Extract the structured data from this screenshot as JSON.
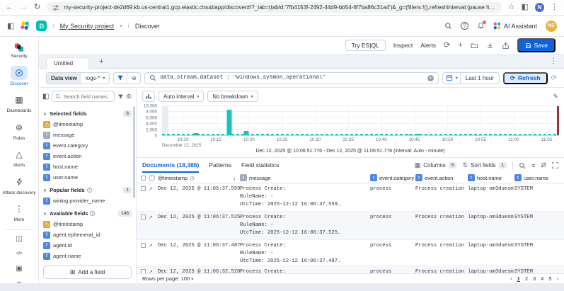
{
  "theme": {
    "accent": "#0b64dd",
    "teal": "#00bfb3"
  },
  "browser": {
    "url": "my-security-project-de2d69.kb.us-central1.gcp.elastic.cloud/app/discover#/?_tab=(tabId:'7fb4153f-2492-44d9-bb54-6f7ba86c31a4')&_g=(filters:!(),refreshInterval:(pause:!t,value:60000),time:(fr…",
    "profile_initial": "N"
  },
  "header": {
    "space_initial": "D",
    "breadcrumb": {
      "project": "My Security project",
      "page": "Discover"
    },
    "ai_assistant_label": "AI Assistant",
    "user_initials": "NS"
  },
  "nav": {
    "logo_label": "Security",
    "items": [
      {
        "id": "discover",
        "label": "Discover",
        "active": true
      },
      {
        "id": "dashboards",
        "label": "Dashboards",
        "active": false
      },
      {
        "id": "rules",
        "label": "Rules",
        "active": false
      },
      {
        "id": "alerts",
        "label": "Alerts",
        "active": false
      },
      {
        "id": "attack-discovery",
        "label": "Attack discovery",
        "active": false
      },
      {
        "id": "more",
        "label": "More",
        "active": false
      }
    ]
  },
  "toolbar": {
    "try_esql": "Try ES|QL",
    "inspect": "Inspect",
    "alerts": "Alerts",
    "save": "Save"
  },
  "tab_bar": {
    "active_tab": "Untitled"
  },
  "query_bar": {
    "data_view_label": "Data view",
    "data_view_value": "logs-*",
    "query": "data_stream.dataset : \"windows.sysmon_operational\"",
    "time_range": "Last 1 hour",
    "refresh_label": "Refresh"
  },
  "fields_panel": {
    "search_placeholder": "Search field names",
    "filter_count": "0",
    "groups": [
      {
        "label": "Selected fields",
        "count": "6",
        "info": false,
        "items": [
          {
            "name": "@timestamp",
            "type": "date"
          },
          {
            "name": "message",
            "type": "text"
          },
          {
            "name": "event.category",
            "type": "keyword"
          },
          {
            "name": "event.action",
            "type": "keyword"
          },
          {
            "name": "host.name",
            "type": "keyword"
          },
          {
            "name": "user.name",
            "type": "keyword"
          }
        ]
      },
      {
        "label": "Popular fields",
        "count": "1",
        "info": true,
        "items": [
          {
            "name": "winlog.provider_name",
            "type": "keyword"
          }
        ]
      },
      {
        "label": "Available fields",
        "count": "146",
        "info": true,
        "items": [
          {
            "name": "@timestamp",
            "type": "date"
          },
          {
            "name": "agent.ephemeral_id",
            "type": "keyword"
          },
          {
            "name": "agent.id",
            "type": "keyword"
          },
          {
            "name": "agent.name",
            "type": "keyword"
          },
          {
            "name": "agent.type",
            "type": "keyword"
          }
        ]
      }
    ],
    "add_field_label": "Add a field"
  },
  "histogram_toolbar": {
    "interval": "Auto interval",
    "breakdown": "No breakdown"
  },
  "chart_data": {
    "type": "bar",
    "title": "Document count over time",
    "time_range_label": "Dec 12, 2025 @ 10:06:51.776 - Dec 12, 2025 @ 11:06:51.776 (interval: Auto - minute)",
    "ylim": [
      0,
      10000
    ],
    "yticks": [
      0,
      2000,
      4000,
      6000,
      8000,
      10000
    ],
    "ytick_labels": [
      "0",
      "2,000",
      "4,000",
      "6,000",
      "8,000",
      "10,000"
    ],
    "x_axis_secondary_label": "December 12, 2025",
    "xticks": [
      {
        "label": "10:10",
        "pos": 5.23
      },
      {
        "label": "10:15",
        "pos": 13.56
      },
      {
        "label": "10:20",
        "pos": 21.9
      },
      {
        "label": "10:25",
        "pos": 30.23
      },
      {
        "label": "10:30",
        "pos": 38.56
      },
      {
        "label": "10:35",
        "pos": 46.9
      },
      {
        "label": "10:40",
        "pos": 55.23
      },
      {
        "label": "10:45",
        "pos": 63.56
      },
      {
        "label": "10:50",
        "pos": 71.9
      },
      {
        "label": "10:55",
        "pos": 80.23
      },
      {
        "label": "11:00",
        "pos": 88.56
      },
      {
        "label": "11:05",
        "pos": 96.9
      }
    ],
    "bars": [
      {
        "pos": 8.5,
        "value": 800
      },
      {
        "pos": 17.0,
        "value": 8700
      },
      {
        "pos": 21.3,
        "value": 1400
      },
      {
        "pos": 62.3,
        "value": 300
      },
      {
        "pos": 64.4,
        "value": 380
      }
    ],
    "baseline_value": 60,
    "bar_color": "#16c5c0",
    "partial_bucket_band_color": "#e9edf3",
    "current_bucket_marker_color": "#97323c",
    "grid": true,
    "legend": "none"
  },
  "documents": {
    "tabs": [
      {
        "label": "Documents (18,386)",
        "active": true
      },
      {
        "label": "Patterns",
        "active": false
      },
      {
        "label": "Field statistics",
        "active": false
      }
    ],
    "columns_label": "Columns",
    "columns_count": "6",
    "sort_label": "Sort fields",
    "sort_count": "1",
    "table_headers": [
      "@timestamp",
      "message",
      "event.category",
      "event.action",
      "host.name",
      "user.name"
    ],
    "rows": [
      {
        "timestamp": "Dec 12, 2025 @ 11:06:37.559",
        "message_lines": [
          "Process Create:",
          "RuleName: -",
          "UtcTime: 2025-12-12 16:06:37.559…"
        ],
        "event_category": "process",
        "event_action": "Process creation",
        "host_name": "laptop-om3duesm",
        "user_name": "SYSTEM"
      },
      {
        "timestamp": "Dec 12, 2025 @ 11:06:37.525",
        "message_lines": [
          "Process Create:",
          "RuleName: -",
          "UtcTime: 2025-12-12 16:06:37.525…"
        ],
        "event_category": "process",
        "event_action": "Process creation",
        "host_name": "laptop-om3duesm",
        "user_name": "SYSTEM"
      },
      {
        "timestamp": "Dec 12, 2025 @ 11:06:37.487",
        "message_lines": [
          "Process Create:",
          "RuleName: -",
          "UtcTime: 2025-12-12 16:06:37.487…"
        ],
        "event_category": "process",
        "event_action": "Process creation",
        "host_name": "laptop-om3duesm",
        "user_name": "SYSTEM"
      },
      {
        "timestamp": "Dec 12, 2025 @ 11:06:32.520",
        "message_lines": [
          "Process Create:",
          "RuleName: -"
        ],
        "event_category": "process",
        "event_action": "Process creation",
        "host_name": "laptop-om3duesm",
        "user_name": "SYSTEM"
      }
    ],
    "rows_per_page": "Rows per page: 100",
    "pages": [
      "1",
      "2",
      "3",
      "4",
      "5"
    ]
  }
}
